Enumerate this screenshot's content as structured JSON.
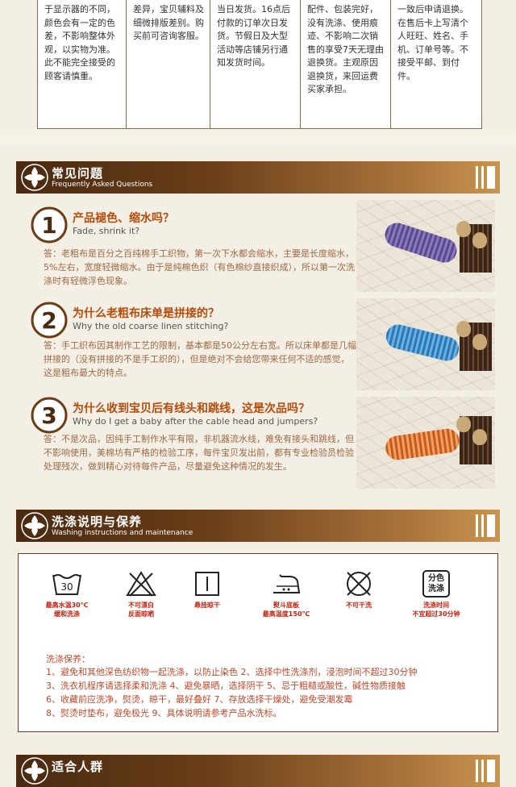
{
  "top_table": {
    "columns": [
      "于显示器的不同，\n颜色会有一定的色\n差，不影响整体外\n观，以实物为准。\n此不能完全接受的\n顾客请慎重。",
      "差异，宝贝辅料及\n细微排版差别。购\n买前可咨询客服。",
      "当日发货。16点后\n付款的订单次日发\n货。节假日及大型\n活动等店铺另行通\n知发货时间。",
      "配件、包装完好，\n没有洗涤、使用痕\n迹、不影响二次销\n售的享受7天无理由\n退换货。主观原因\n退换货，来回运费\n买家承担。",
      "一致后申请退换。\n在售后卡上写清个\n人旺旺、姓名、手\n机、订单号等。不\n接受平邮、到付件。"
    ]
  },
  "faq_header": {
    "zh": "常见问题",
    "en": "Frequently Asked Questions"
  },
  "faq": [
    {
      "num": "1",
      "q": "产品褪色、缩水吗？",
      "en": "Fade, shrink it?",
      "a": "答：老粗布是百分之百纯棉手工织物，第一次下水都会缩水，主要是长度缩水，5%左右，宽度轻微缩水。由于是纯棉色织（有色棉纱直接织成），所以第一次洗涤时有轻微浮色现象。",
      "pillow_color": "#6b5a9a"
    },
    {
      "num": "2",
      "q": "为什么老粗布床单是拼接的？",
      "en": "Why the old coarse linen stitching?",
      "a": "答：手工织布因其制作工艺的限制，基本都是50公分左右宽。所以床单都是几幅拼接的（没有拼接的不是手工织的），但是绝对不会给您带来任何不适的感觉，这是粗布最大的特点。",
      "pillow_color": "#3b88c4"
    },
    {
      "num": "3",
      "q": "为什么收到宝贝后有线头和跳线，这是次品吗？",
      "en": "Why do I get a baby after the cable head and jumpers?",
      "a": "答：不是次品，因纯手工制作水平有限，非机器流水线，难免有接头和跳线，但不影响使用，美棉坊有严格的检验工序，每件宝贝发出前，都有专业检验员检验处理残次，做到精心对待每件产品，尽量避免这种情况的发生。",
      "pillow_color": "#d9733a"
    }
  ],
  "wash_header": {
    "zh": "洗涤说明与保养",
    "en": "Washing instructions and maintenance"
  },
  "wash_icons": [
    {
      "name": "wash-30-icon",
      "label": "30",
      "caption": "最高水温30℃\n缓和洗涤"
    },
    {
      "name": "no-bleach-icon",
      "label": "",
      "caption": "不可漂白\n反面晾晒"
    },
    {
      "name": "hang-dry-icon",
      "label": "",
      "caption": "悬挂晾干"
    },
    {
      "name": "iron-icon",
      "label": "",
      "caption": "熨斗底板\n最高温度150℃"
    },
    {
      "name": "no-dry-clean-icon",
      "label": "",
      "caption": "不可干洗"
    },
    {
      "name": "separate-wash-icon",
      "label": "分色\n洗涤",
      "caption": "洗涤时间\n不宜超过30分钟"
    }
  ],
  "care": {
    "title": "洗涤保养：",
    "lines": [
      "1、避免和其他深色纺织物一起洗涤，以防止染色    2、选择中性洗涤剂，浸泡时间不超过30分钟",
      "3、洗衣机程序请选择柔和洗涤   4、避免暴晒，选择阴干    5、忌于粗糙或酸性，碱性物质接触",
      "6、收藏前应洗净，熨烫，晾干，最好叠好    7、存放选择干燥处，避免受潮发霉",
      "8、熨烫时垫布，避免极光    9、具体说明请参考产品水洗标。"
    ]
  },
  "fit_header": {
    "zh": "适合人群",
    "en": ""
  },
  "colors": {
    "accent": "#b34c0a",
    "header_dark": "#4a2a10",
    "care_text": "#c0482a"
  }
}
